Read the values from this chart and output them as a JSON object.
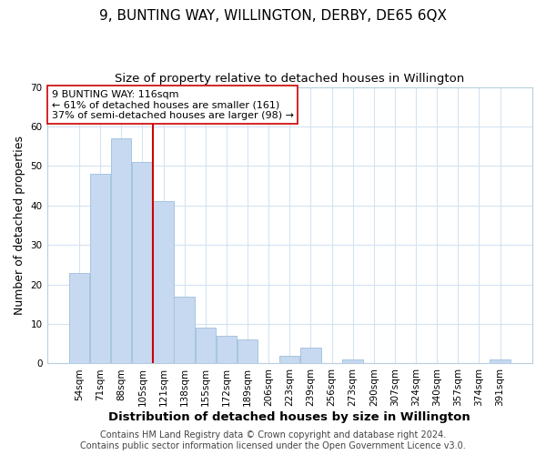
{
  "title": "9, BUNTING WAY, WILLINGTON, DERBY, DE65 6QX",
  "subtitle": "Size of property relative to detached houses in Willington",
  "xlabel": "Distribution of detached houses by size in Willington",
  "ylabel": "Number of detached properties",
  "bar_labels": [
    "54sqm",
    "71sqm",
    "88sqm",
    "105sqm",
    "121sqm",
    "138sqm",
    "155sqm",
    "172sqm",
    "189sqm",
    "206sqm",
    "223sqm",
    "239sqm",
    "256sqm",
    "273sqm",
    "290sqm",
    "307sqm",
    "324sqm",
    "340sqm",
    "357sqm",
    "374sqm",
    "391sqm"
  ],
  "bar_values": [
    23,
    48,
    57,
    51,
    41,
    17,
    9,
    7,
    6,
    0,
    2,
    4,
    0,
    1,
    0,
    0,
    0,
    0,
    0,
    0,
    1
  ],
  "bar_color": "#c6d9f0",
  "bar_edge_color": "#a8c4e0",
  "vline_x_index": 3,
  "vline_color": "#cc0000",
  "annotation_text": "9 BUNTING WAY: 116sqm\n← 61% of detached houses are smaller (161)\n37% of semi-detached houses are larger (98) →",
  "annotation_box_color": "#ffffff",
  "annotation_box_edge": "#cc0000",
  "ylim": [
    0,
    70
  ],
  "yticks": [
    0,
    10,
    20,
    30,
    40,
    50,
    60,
    70
  ],
  "footer": "Contains HM Land Registry data © Crown copyright and database right 2024.\nContains public sector information licensed under the Open Government Licence v3.0.",
  "grid_color": "#d4e3f0",
  "title_fontsize": 11,
  "subtitle_fontsize": 9.5,
  "xlabel_fontsize": 9.5,
  "ylabel_fontsize": 9,
  "tick_fontsize": 7.5,
  "annotation_fontsize": 8,
  "footer_fontsize": 7
}
